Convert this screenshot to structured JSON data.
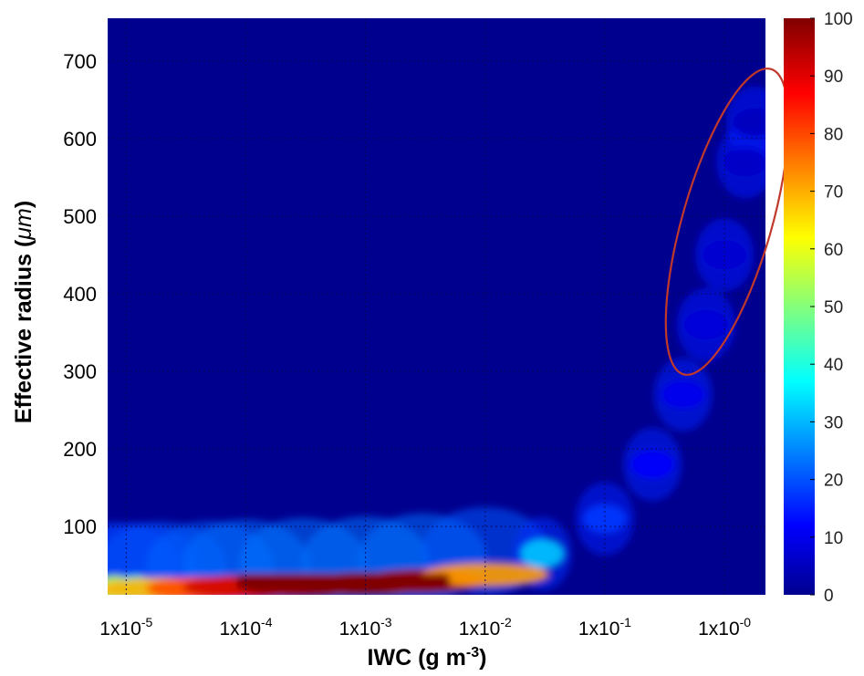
{
  "chart_data": {
    "type": "heatmap",
    "title": "",
    "xlabel": "IWC (g m",
    "xlabel_sup": "-3",
    "xlabel_end": ")",
    "ylabel_text": "Effective radius (",
    "ylabel_unit": "μm",
    "ylabel_end": ")",
    "x_scale": "log",
    "xlim": [
      7e-06,
      2.2
    ],
    "ylim": [
      12,
      755
    ],
    "x_ticks": [
      {
        "value": 1e-05,
        "base": "1x10",
        "exp": "-5"
      },
      {
        "value": 0.0001,
        "base": "1x10",
        "exp": "-4"
      },
      {
        "value": 0.001,
        "base": "1x10",
        "exp": "-3"
      },
      {
        "value": 0.01,
        "base": "1x10",
        "exp": "-2"
      },
      {
        "value": 0.1,
        "base": "1x10",
        "exp": "-1"
      },
      {
        "value": 1,
        "base": "1x10",
        "exp": "-0"
      }
    ],
    "y_ticks": [
      100,
      200,
      300,
      400,
      500,
      600,
      700
    ],
    "grid": true,
    "colorbar": {
      "min": 0,
      "max": 100,
      "ticks": [
        "0",
        "10",
        "20",
        "30",
        "40",
        "50",
        "60",
        "70",
        "80",
        "90",
        "100"
      ],
      "colormap": "jet"
    },
    "density_ridge": [
      {
        "iwc": 8e-06,
        "r": 18,
        "v": 55
      },
      {
        "iwc": 1.2e-05,
        "r": 18,
        "v": 45
      },
      {
        "iwc": 2e-05,
        "r": 19,
        "v": 70
      },
      {
        "iwc": 5e-05,
        "r": 20,
        "v": 80
      },
      {
        "iwc": 0.0001,
        "r": 22,
        "v": 92
      },
      {
        "iwc": 0.0003,
        "r": 24,
        "v": 98
      },
      {
        "iwc": 0.001,
        "r": 26,
        "v": 100
      },
      {
        "iwc": 0.003,
        "r": 30,
        "v": 96
      },
      {
        "iwc": 0.01,
        "r": 38,
        "v": 72
      },
      {
        "iwc": 0.03,
        "r": 65,
        "v": 32
      },
      {
        "iwc": 0.1,
        "r": 110,
        "v": 18
      },
      {
        "iwc": 0.25,
        "r": 180,
        "v": 13
      },
      {
        "iwc": 0.45,
        "r": 270,
        "v": 11
      },
      {
        "iwc": 0.7,
        "r": 360,
        "v": 9
      },
      {
        "iwc": 1.0,
        "r": 450,
        "v": 8
      },
      {
        "iwc": 1.5,
        "r": 570,
        "v": 7
      },
      {
        "iwc": 1.8,
        "r": 620,
        "v": 6
      }
    ],
    "annotations": [
      {
        "type": "ellipse",
        "color": "#c0392b",
        "center_iwc": 1.2,
        "center_r": 490,
        "note": "outline only"
      }
    ],
    "colors": {
      "background_field": "#00008f",
      "grid": "#0a0a55",
      "annotation": "#c0392b",
      "axis_text": "#000000"
    }
  }
}
